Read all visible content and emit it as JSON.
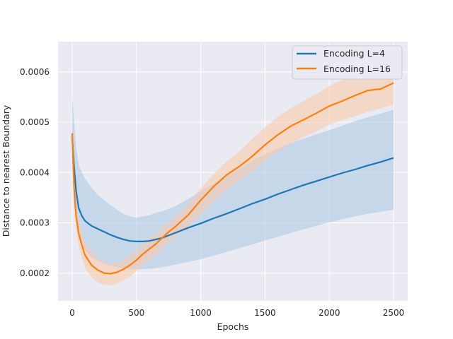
{
  "chart_data": {
    "type": "line",
    "title": "",
    "xlabel": "Epochs",
    "ylabel": "Distance to nearest Boundary",
    "xlim": [
      -110,
      2610
    ],
    "ylim": [
      0.000145,
      0.00066
    ],
    "xticks": [
      0,
      500,
      1000,
      1500,
      2000,
      2500
    ],
    "yticks": [
      0.0002,
      0.0003,
      0.0004,
      0.0005,
      0.0006
    ],
    "xtick_labels": [
      "0",
      "500",
      "1000",
      "1500",
      "2000",
      "2500"
    ],
    "ytick_labels": [
      "0.0002",
      "0.0003",
      "0.0004",
      "0.0005",
      "0.0006"
    ],
    "grid": true,
    "legend_position": "top-right",
    "background": "#eaeaf2",
    "series": [
      {
        "name": "Encoding L=4",
        "color": "#1f77b4",
        "band_color": "#a9c6e4",
        "x": [
          0,
          15,
          30,
          50,
          75,
          100,
          150,
          200,
          250,
          300,
          350,
          400,
          450,
          500,
          550,
          600,
          650,
          700,
          750,
          800,
          900,
          1000,
          1100,
          1200,
          1300,
          1400,
          1500,
          1600,
          1700,
          1800,
          1900,
          2000,
          2100,
          2200,
          2300,
          2400,
          2500
        ],
        "mean": [
          0.00047,
          0.00041,
          0.000365,
          0.00033,
          0.000314,
          0.000304,
          0.000294,
          0.000288,
          0.000282,
          0.000276,
          0.000271,
          0.000267,
          0.000264,
          0.000263,
          0.000263,
          0.000264,
          0.000267,
          0.00027,
          0.000275,
          0.00028,
          0.00029,
          0.000299,
          0.000309,
          0.000318,
          0.000328,
          0.000338,
          0.000347,
          0.000357,
          0.000366,
          0.000375,
          0.000383,
          0.000391,
          0.000399,
          0.000406,
          0.000414,
          0.000421,
          0.000429
        ],
        "upper": [
          0.00055,
          0.0005,
          0.00045,
          0.000415,
          0.0004,
          0.000388,
          0.00037,
          0.000355,
          0.000345,
          0.000335,
          0.000326,
          0.000318,
          0.000313,
          0.00031,
          0.000313,
          0.000315,
          0.00032,
          0.000323,
          0.000328,
          0.000333,
          0.000347,
          0.000363,
          0.000378,
          0.000393,
          0.000408,
          0.000423,
          0.000436,
          0.000448,
          0.000458,
          0.000467,
          0.000476,
          0.000484,
          0.000493,
          0.000502,
          0.00051,
          0.000517,
          0.000525
        ],
        "lower": [
          0.00041,
          0.00034,
          0.0003,
          0.00027,
          0.000255,
          0.000245,
          0.000232,
          0.000225,
          0.000219,
          0.000215,
          0.000212,
          0.00021,
          0.000208,
          0.000208,
          0.000208,
          0.000209,
          0.00021,
          0.000212,
          0.000214,
          0.000217,
          0.000222,
          0.000228,
          0.000235,
          0.000242,
          0.00025,
          0.000257,
          0.000265,
          0.000272,
          0.00028,
          0.000287,
          0.000294,
          0.000301,
          0.000307,
          0.000313,
          0.000318,
          0.000322,
          0.000326
        ]
      },
      {
        "name": "Encoding L=16",
        "color": "#ff7f0e",
        "band_color": "#f9c9a6",
        "x": [
          0,
          15,
          30,
          50,
          75,
          100,
          150,
          200,
          250,
          300,
          350,
          400,
          450,
          500,
          550,
          600,
          650,
          700,
          750,
          800,
          900,
          1000,
          1100,
          1200,
          1300,
          1400,
          1500,
          1600,
          1700,
          1800,
          1900,
          2000,
          2100,
          2200,
          2300,
          2400,
          2450,
          2500
        ],
        "mean": [
          0.000478,
          0.00037,
          0.000315,
          0.00028,
          0.000256,
          0.000236,
          0.000216,
          0.000206,
          0.0002,
          0.000199,
          0.000202,
          0.000208,
          0.000216,
          0.000226,
          0.000238,
          0.000248,
          0.000258,
          0.00027,
          0.000282,
          0.000292,
          0.000315,
          0.000345,
          0.000372,
          0.000395,
          0.000412,
          0.000432,
          0.000455,
          0.000475,
          0.000492,
          0.000505,
          0.000518,
          0.000532,
          0.000542,
          0.000553,
          0.000563,
          0.000566,
          0.000572,
          0.000578
        ],
        "upper": [
          0.0005,
          0.0004,
          0.00034,
          0.000305,
          0.000282,
          0.000262,
          0.000242,
          0.00023,
          0.000222,
          0.000219,
          0.00022,
          0.000226,
          0.000235,
          0.000246,
          0.000257,
          0.000268,
          0.000278,
          0.00029,
          0.000301,
          0.000311,
          0.000337,
          0.000369,
          0.000397,
          0.000422,
          0.000442,
          0.000466,
          0.00049,
          0.000511,
          0.000528,
          0.000542,
          0.000556,
          0.000572,
          0.000584,
          0.000598,
          0.000607,
          0.000612,
          0.000618,
          0.000624
        ],
        "lower": [
          0.00046,
          0.00034,
          0.00029,
          0.000255,
          0.00023,
          0.00021,
          0.000192,
          0.000182,
          0.000177,
          0.000176,
          0.000179,
          0.000186,
          0.000194,
          0.000204,
          0.000216,
          0.000226,
          0.000236,
          0.000248,
          0.000261,
          0.000272,
          0.000292,
          0.000318,
          0.000342,
          0.000366,
          0.000384,
          0.000402,
          0.000424,
          0.000442,
          0.000458,
          0.00047,
          0.000482,
          0.000495,
          0.000504,
          0.000512,
          0.000521,
          0.000527,
          0.000531,
          0.000535
        ]
      }
    ]
  }
}
